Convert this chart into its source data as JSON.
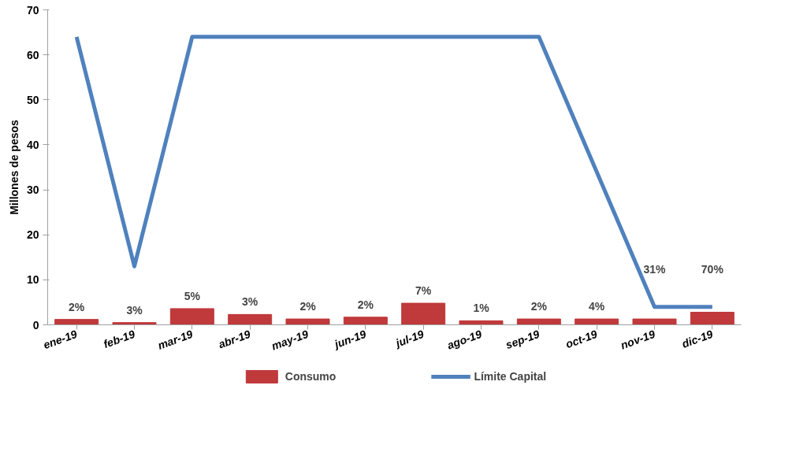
{
  "chart_data": {
    "type": "bar",
    "ylabel": "Millones de pesos",
    "categories": [
      "ene-19",
      "feb-19",
      "mar-19",
      "abr-19",
      "may-19",
      "jun-19",
      "jul-19",
      "ago-19",
      "sep-19",
      "oct-19",
      "nov-19",
      "dic-19"
    ],
    "series": [
      {
        "name": "Consumo",
        "color": "#c0393b",
        "values": [
          1.2,
          0.5,
          3.6,
          2.3,
          1.3,
          1.7,
          4.8,
          0.9,
          1.3,
          1.3,
          1.3,
          2.8
        ]
      },
      {
        "name": "Límite Capital",
        "type": "line",
        "color": "#4f81bd",
        "values": [
          64,
          13,
          64,
          64,
          64,
          64,
          64,
          64,
          64,
          34,
          4,
          4
        ]
      }
    ],
    "ylim": [
      0,
      70
    ],
    "yticks": [
      0,
      10,
      20,
      30,
      40,
      50,
      60,
      70
    ],
    "legend": "bottom",
    "annotations": [
      "2%",
      "3%",
      "5%",
      "3%",
      "2%",
      "2%",
      "7%",
      "1%",
      "2%",
      "4%",
      "31%",
      "70%"
    ]
  }
}
